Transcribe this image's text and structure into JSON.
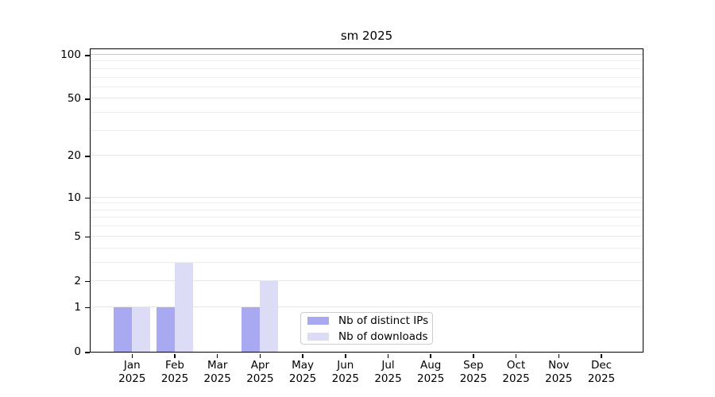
{
  "chart_data": {
    "type": "bar",
    "title": "sm 2025",
    "categories": [
      {
        "month": "Jan",
        "year": "2025"
      },
      {
        "month": "Feb",
        "year": "2025"
      },
      {
        "month": "Mar",
        "year": "2025"
      },
      {
        "month": "Apr",
        "year": "2025"
      },
      {
        "month": "May",
        "year": "2025"
      },
      {
        "month": "Jun",
        "year": "2025"
      },
      {
        "month": "Jul",
        "year": "2025"
      },
      {
        "month": "Aug",
        "year": "2025"
      },
      {
        "month": "Sep",
        "year": "2025"
      },
      {
        "month": "Oct",
        "year": "2025"
      },
      {
        "month": "Nov",
        "year": "2025"
      },
      {
        "month": "Dec",
        "year": "2025"
      }
    ],
    "series": [
      {
        "name": "Nb of distinct IPs",
        "color": "#a9a9f2",
        "values": [
          1,
          1,
          0,
          1,
          0,
          0,
          0,
          0,
          0,
          0,
          0,
          0
        ]
      },
      {
        "name": "Nb of downloads",
        "color": "#dcdcf7",
        "values": [
          1,
          3,
          0,
          2,
          0,
          0,
          0,
          0,
          0,
          0,
          0,
          0
        ]
      }
    ],
    "xlabel": "",
    "ylabel": "",
    "yscale": "log10(1+x)",
    "yticks": [
      0,
      1,
      2,
      5,
      10,
      20,
      50,
      100
    ],
    "minor_gridline_values": [
      3,
      4,
      6,
      7,
      8,
      9,
      30,
      40,
      60,
      70,
      80,
      90
    ],
    "ylim": [
      0,
      111
    ],
    "grid": "horizontal",
    "legend_position": "bottom-center-inside"
  },
  "colors": {
    "background": "#ffffff",
    "axis": "#000000",
    "gridline_minor": "#ededed",
    "gridline_major": "#e6e6e6",
    "gridline_100": "#c9c9c9",
    "legend_border": "#cccccc",
    "text": "#000000"
  }
}
